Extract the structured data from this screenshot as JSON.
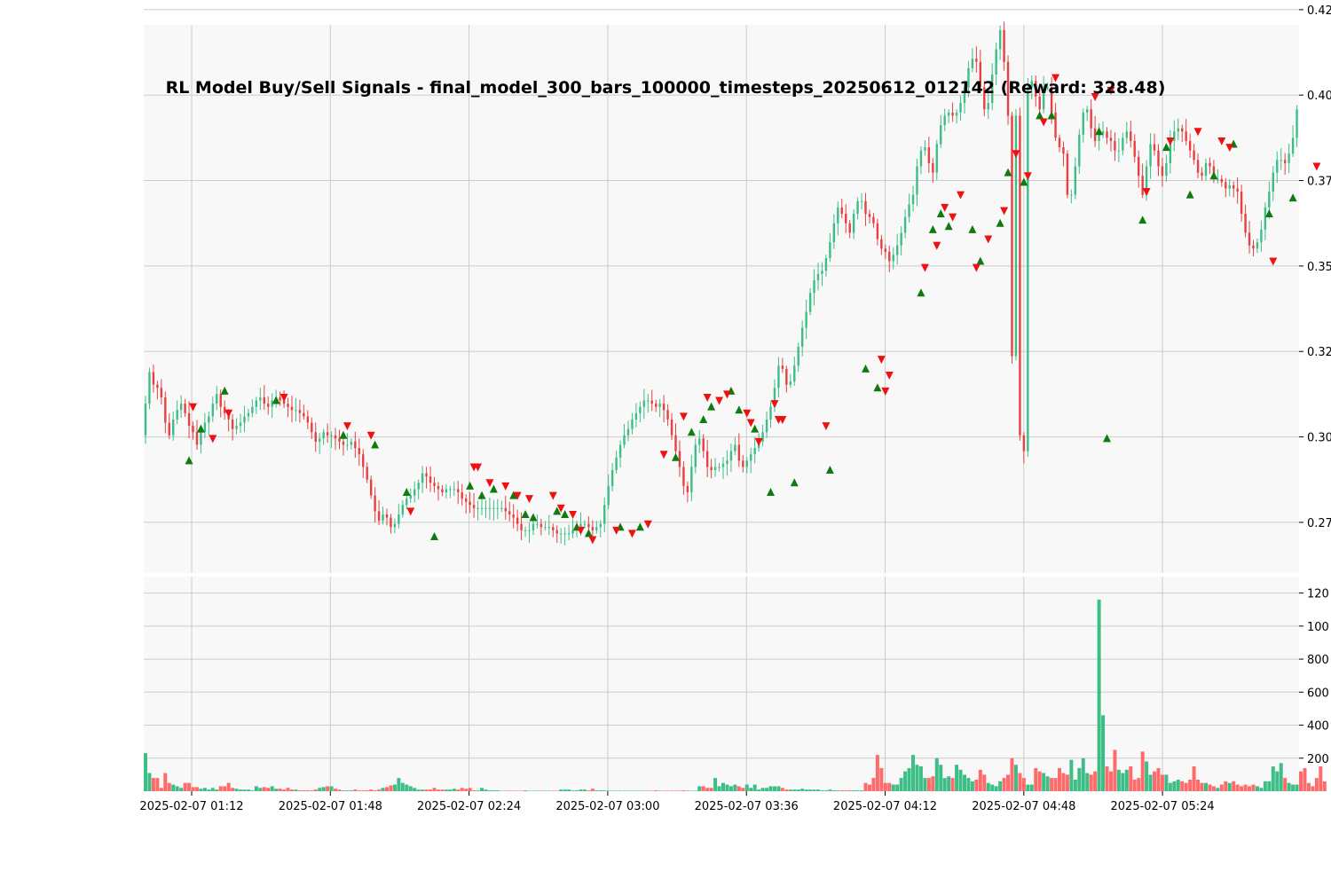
{
  "chart_data": {
    "type": "candlestick",
    "title": "RL Model Buy/Sell Signals - final_model_300_bars_100000_timesteps_20250612_012142 (Reward: 328.48)",
    "x_tick_labels": [
      "2025-02-07 01:12",
      "2025-02-07 01:48",
      "2025-02-07 02:24",
      "2025-02-07 03:00",
      "2025-02-07 03:36",
      "2025-02-07 04:12",
      "2025-02-07 04:48",
      "2025-02-07 05:24"
    ],
    "price_panel": {
      "y_tick_labels": [
        "0.27",
        "0.30",
        "0.32",
        "0.35",
        "0.37",
        "0.40",
        "0.42"
      ],
      "ylim": [
        0.2565,
        0.4297
      ],
      "grid": true,
      "close_series": [
        0.31,
        0.32,
        0.316,
        0.315,
        0.312,
        0.304,
        0.3,
        0.305,
        0.308,
        0.31,
        0.307,
        0.303,
        0.301,
        0.297,
        0.301,
        0.304,
        0.306,
        0.31,
        0.313,
        0.309,
        0.307,
        0.305,
        0.302,
        0.303,
        0.304,
        0.306,
        0.307,
        0.309,
        0.311,
        0.312,
        0.31,
        0.309,
        0.311,
        0.312,
        0.311,
        0.31,
        0.309,
        0.308,
        0.308,
        0.307,
        0.306,
        0.304,
        0.301,
        0.298,
        0.299,
        0.301,
        0.3,
        0.3,
        0.299,
        0.298,
        0.297,
        0.297,
        0.298,
        0.296,
        0.294,
        0.29,
        0.286,
        0.281,
        0.276,
        0.273,
        0.275,
        0.274,
        0.271,
        0.272,
        0.275,
        0.278,
        0.28,
        0.281,
        0.283,
        0.285,
        0.288,
        0.287,
        0.285,
        0.284,
        0.283,
        0.282,
        0.283,
        0.283,
        0.283,
        0.282,
        0.28,
        0.279,
        0.278,
        0.277,
        0.277,
        0.277,
        0.277,
        0.277,
        0.277,
        0.277,
        0.277,
        0.276,
        0.275,
        0.274,
        0.272,
        0.27,
        0.27,
        0.27,
        0.272,
        0.272,
        0.271,
        0.271,
        0.271,
        0.27,
        0.269,
        0.269,
        0.269,
        0.269,
        0.27,
        0.271,
        0.272,
        0.272,
        0.271,
        0.27,
        0.271,
        0.272,
        0.278,
        0.284,
        0.289,
        0.293,
        0.297,
        0.3,
        0.302,
        0.305,
        0.307,
        0.309,
        0.311,
        0.311,
        0.31,
        0.309,
        0.31,
        0.308,
        0.305,
        0.3,
        0.295,
        0.29,
        0.284,
        0.282,
        0.29,
        0.297,
        0.299,
        0.295,
        0.29,
        0.289,
        0.29,
        0.29,
        0.291,
        0.292,
        0.295,
        0.297,
        0.292,
        0.29,
        0.292,
        0.294,
        0.296,
        0.298,
        0.301,
        0.305,
        0.309,
        0.315,
        0.322,
        0.321,
        0.316,
        0.317,
        0.322,
        0.328,
        0.334,
        0.339,
        0.345,
        0.349,
        0.351,
        0.352,
        0.356,
        0.361,
        0.367,
        0.372,
        0.37,
        0.367,
        0.364,
        0.37,
        0.374,
        0.374,
        0.37,
        0.369,
        0.367,
        0.362,
        0.359,
        0.358,
        0.355,
        0.357,
        0.36,
        0.364,
        0.369,
        0.373,
        0.376,
        0.385,
        0.39,
        0.391,
        0.386,
        0.383,
        0.392,
        0.398,
        0.401,
        0.402,
        0.401,
        0.402,
        0.405,
        0.41,
        0.416,
        0.419,
        0.418,
        0.41,
        0.403,
        0.405,
        0.414,
        0.422,
        0.428,
        0.418,
        0.401,
        0.325,
        0.401,
        0.3,
        0.295,
        0.41,
        0.412,
        0.407,
        0.403,
        0.41,
        0.41,
        0.402,
        0.394,
        0.391,
        0.389,
        0.376,
        0.376,
        0.385,
        0.395,
        0.402,
        0.403,
        0.397,
        0.393,
        0.395,
        0.396,
        0.394,
        0.393,
        0.39,
        0.39,
        0.394,
        0.396,
        0.393,
        0.388,
        0.382,
        0.376,
        0.385,
        0.392,
        0.39,
        0.385,
        0.382,
        0.386,
        0.393,
        0.396,
        0.397,
        0.396,
        0.393,
        0.39,
        0.387,
        0.383,
        0.382,
        0.386,
        0.385,
        0.381,
        0.381,
        0.38,
        0.378,
        0.379,
        0.378,
        0.377,
        0.37,
        0.364,
        0.36,
        0.359,
        0.361,
        0.365,
        0.372,
        0.377,
        0.383,
        0.387,
        0.387,
        0.386,
        0.389,
        0.394,
        0.403
      ],
      "buy_signals": [
        [
          11,
          0.292
        ],
        [
          14,
          0.302
        ],
        [
          20,
          0.314
        ],
        [
          33,
          0.311
        ],
        [
          50,
          0.3
        ],
        [
          58,
          0.297
        ],
        [
          66,
          0.282
        ],
        [
          73,
          0.268
        ],
        [
          82,
          0.284
        ],
        [
          85,
          0.281
        ],
        [
          88,
          0.283
        ],
        [
          93,
          0.281
        ],
        [
          96,
          0.275
        ],
        [
          98,
          0.274
        ],
        [
          104,
          0.276
        ],
        [
          106,
          0.275
        ],
        [
          109,
          0.271
        ],
        [
          112,
          0.269
        ],
        [
          120,
          0.271
        ],
        [
          125,
          0.271
        ],
        [
          134,
          0.293
        ],
        [
          138,
          0.301
        ],
        [
          141,
          0.305
        ],
        [
          143,
          0.309
        ],
        [
          148,
          0.314
        ],
        [
          150,
          0.308
        ],
        [
          154,
          0.302
        ],
        [
          158,
          0.282
        ],
        [
          164,
          0.285
        ],
        [
          173,
          0.289
        ],
        [
          182,
          0.321
        ],
        [
          185,
          0.315
        ],
        [
          196,
          0.345
        ],
        [
          199,
          0.365
        ],
        [
          201,
          0.37
        ],
        [
          203,
          0.366
        ],
        [
          209,
          0.365
        ],
        [
          211,
          0.355
        ],
        [
          216,
          0.367
        ],
        [
          218,
          0.383
        ],
        [
          222,
          0.38
        ],
        [
          226,
          0.401
        ],
        [
          229,
          0.401
        ],
        [
          241,
          0.396
        ],
        [
          243,
          0.299
        ],
        [
          252,
          0.368
        ],
        [
          258,
          0.391
        ],
        [
          264,
          0.376
        ],
        [
          270,
          0.382
        ],
        [
          275,
          0.392
        ],
        [
          284,
          0.37
        ],
        [
          290,
          0.375
        ]
      ],
      "sell_signals": [
        [
          12,
          0.309
        ],
        [
          21,
          0.307
        ],
        [
          17,
          0.299
        ],
        [
          35,
          0.312
        ],
        [
          51,
          0.303
        ],
        [
          57,
          0.3
        ],
        [
          67,
          0.276
        ],
        [
          83,
          0.29
        ],
        [
          84,
          0.29
        ],
        [
          87,
          0.285
        ],
        [
          91,
          0.284
        ],
        [
          94,
          0.281
        ],
        [
          97,
          0.28
        ],
        [
          103,
          0.281
        ],
        [
          105,
          0.277
        ],
        [
          108,
          0.275
        ],
        [
          110,
          0.27
        ],
        [
          113,
          0.267
        ],
        [
          119,
          0.27
        ],
        [
          123,
          0.269
        ],
        [
          127,
          0.272
        ],
        [
          131,
          0.294
        ],
        [
          136,
          0.306
        ],
        [
          142,
          0.312
        ],
        [
          145,
          0.311
        ],
        [
          147,
          0.313
        ],
        [
          152,
          0.307
        ],
        [
          153,
          0.304
        ],
        [
          155,
          0.298
        ],
        [
          159,
          0.31
        ],
        [
          160,
          0.305
        ],
        [
          161,
          0.305
        ],
        [
          172,
          0.303
        ],
        [
          186,
          0.324
        ],
        [
          188,
          0.319
        ],
        [
          187,
          0.314
        ],
        [
          197,
          0.353
        ],
        [
          200,
          0.36
        ],
        [
          202,
          0.372
        ],
        [
          204,
          0.369
        ],
        [
          206,
          0.376
        ],
        [
          210,
          0.353
        ],
        [
          213,
          0.362
        ],
        [
          217,
          0.371
        ],
        [
          220,
          0.389
        ],
        [
          223,
          0.382
        ],
        [
          227,
          0.399
        ],
        [
          230,
          0.413
        ],
        [
          240,
          0.407
        ],
        [
          244,
          0.409
        ],
        [
          253,
          0.377
        ],
        [
          259,
          0.393
        ],
        [
          266,
          0.396
        ],
        [
          272,
          0.393
        ],
        [
          274,
          0.391
        ],
        [
          285,
          0.355
        ],
        [
          296,
          0.385
        ]
      ]
    },
    "volume_panel": {
      "y_tick_labels": [
        "200",
        "400",
        "600",
        "800",
        "100",
        "120"
      ],
      "ylim": [
        0,
        1300
      ],
      "grid": true,
      "values": [
        230,
        110,
        80,
        80,
        20,
        110,
        50,
        40,
        30,
        20,
        50,
        50,
        25,
        25,
        15,
        20,
        10,
        20,
        10,
        30,
        30,
        50,
        20,
        15,
        10,
        10,
        10,
        5,
        30,
        20,
        25,
        20,
        30,
        15,
        15,
        10,
        20,
        10,
        10,
        5,
        5,
        5,
        5,
        10,
        20,
        25,
        30,
        30,
        15,
        10,
        5,
        5,
        5,
        10,
        5,
        5,
        5,
        10,
        5,
        10,
        20,
        25,
        35,
        40,
        80,
        50,
        40,
        30,
        20,
        10,
        10,
        10,
        10,
        20,
        10,
        10,
        10,
        10,
        15,
        10,
        20,
        15,
        20,
        5,
        5,
        20,
        10,
        5,
        5,
        5,
        3,
        3,
        3,
        3,
        3,
        3,
        5,
        3,
        3,
        3,
        3,
        3,
        3,
        3,
        3,
        10,
        10,
        10,
        5,
        5,
        10,
        10,
        5,
        15,
        5,
        5,
        5,
        3,
        3,
        3,
        3,
        3,
        3,
        3,
        3,
        3,
        3,
        3,
        3,
        5,
        3,
        3,
        3,
        3,
        3,
        3,
        5,
        3,
        3,
        3,
        30,
        30,
        20,
        20,
        80,
        30,
        50,
        40,
        30,
        40,
        30,
        20,
        40,
        20,
        40,
        10,
        20,
        20,
        30,
        30,
        30,
        20,
        10,
        10,
        10,
        10,
        15,
        10,
        10,
        10,
        10,
        5,
        5,
        10,
        5,
        5,
        5,
        5,
        5,
        5,
        5,
        5,
        50,
        40,
        80,
        220,
        140,
        50,
        50,
        40,
        40,
        80,
        120,
        140,
        220,
        160,
        150,
        80,
        80,
        90,
        200,
        160,
        80,
        90,
        80,
        160,
        130,
        100,
        80,
        60,
        70,
        130,
        100,
        50,
        40,
        30,
        60,
        80,
        100,
        200,
        160,
        110,
        80,
        40,
        40,
        140,
        120,
        110,
        90,
        80,
        80,
        140,
        110,
        100,
        190,
        70,
        140,
        200,
        110,
        100,
        120,
        1160,
        460,
        150,
        120,
        250,
        130,
        110,
        130,
        150,
        70,
        80,
        240,
        180,
        100,
        120,
        140,
        100,
        100,
        50,
        60,
        70,
        60,
        50,
        70,
        150,
        70,
        50,
        50,
        40,
        30,
        20,
        40,
        60,
        50,
        60,
        40,
        30,
        40,
        30,
        40,
        30,
        20,
        60,
        60,
        150,
        120,
        170,
        80,
        50,
        40,
        40,
        120,
        140,
        50,
        30,
        80,
        150,
        60
      ],
      "colors": [
        "#3dbe87",
        "#ff6b6b"
      ]
    },
    "colors": {
      "up": "#3dbe87",
      "down": "#e84040",
      "buy_marker": "#0f7a0f",
      "sell_marker": "#ee1111",
      "panel_bg": "#f8f8f8",
      "grid": "#cccccc"
    }
  }
}
